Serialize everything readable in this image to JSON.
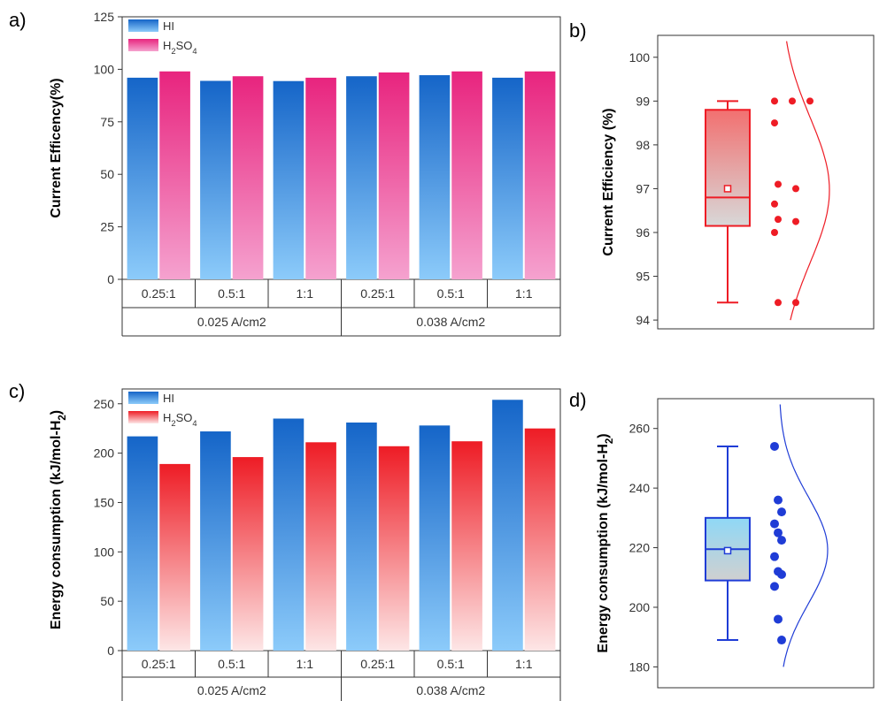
{
  "panel_letters": [
    "a)",
    "b)",
    "c)",
    "d)"
  ],
  "colors": {
    "hi_blue": "#1565c8",
    "h2so4_pink": "#e8247e",
    "h2so4_red": "#ee1c25",
    "box_red": "#ee1c25",
    "box_blue": "#1f3cd6"
  },
  "chart_data": [
    {
      "id": "a",
      "type": "bar",
      "ylabel": "Current Efficency(%)",
      "ylim": [
        0,
        125
      ],
      "yticks": [
        0,
        25,
        50,
        75,
        100,
        125
      ],
      "categories": [
        "0.25:1",
        "0.5:1",
        "1:1",
        "0.25:1",
        "0.5:1",
        "1:1"
      ],
      "groups": [
        {
          "label": "0.025 A/cm2",
          "span": 3
        },
        {
          "label": "0.038 A/cm2",
          "span": 3
        }
      ],
      "legend_position": "top-left",
      "series": [
        {
          "name": "HI",
          "name_sub": "",
          "name_tail": "",
          "values": [
            96,
            94.5,
            94.4,
            96.7,
            97.2,
            96
          ]
        },
        {
          "name": "H",
          "name_sub": "2",
          "name_tail": "SO",
          "name_sub2": "4",
          "values": [
            99,
            96.7,
            96,
            98.5,
            99,
            99
          ]
        }
      ]
    },
    {
      "id": "b",
      "type": "box",
      "ylabel": "Current Efficiency (%)",
      "ylim": [
        93.8,
        100.5
      ],
      "yticks": [
        94,
        95,
        96,
        97,
        98,
        99,
        100
      ],
      "box": {
        "q1": 96.15,
        "median": 96.8,
        "q3": 98.8,
        "whisker_low": 94.4,
        "whisker_high": 99.0,
        "mean": 97.0
      },
      "points": [
        99,
        99,
        99,
        98.5,
        97.1,
        97.0,
        96.65,
        96.3,
        96.25,
        96.0,
        94.4,
        94.4
      ]
    },
    {
      "id": "c",
      "type": "bar",
      "ylabel": "Energy consumption (kJ/mol-H",
      "ylabel_sub": "2",
      "ylabel_tail": ")",
      "ylim": [
        0,
        265
      ],
      "yticks": [
        0,
        50,
        100,
        150,
        200,
        250
      ],
      "categories": [
        "0.25:1",
        "0.5:1",
        "1:1",
        "0.25:1",
        "0.5:1",
        "1:1"
      ],
      "groups": [
        {
          "label": "0.025 A/cm2",
          "span": 3
        },
        {
          "label": "0.038 A/cm2",
          "span": 3
        }
      ],
      "legend_position": "top-left",
      "series": [
        {
          "name": "HI",
          "name_sub": "",
          "name_tail": "",
          "values": [
            217,
            222,
            235,
            231,
            228,
            254
          ]
        },
        {
          "name": "H",
          "name_sub": "2",
          "name_tail": "SO",
          "name_sub2": "4",
          "values": [
            189,
            196,
            211,
            207,
            212,
            225
          ]
        }
      ]
    },
    {
      "id": "d",
      "type": "box",
      "ylabel": "Energy consumption (kJ/mol-H",
      "ylabel_sub": "2",
      "ylabel_tail": ")",
      "ylim": [
        173,
        270
      ],
      "yticks": [
        180,
        200,
        220,
        240,
        260
      ],
      "box": {
        "q1": 209,
        "median": 219.5,
        "q3": 230,
        "whisker_low": 189,
        "whisker_high": 254,
        "mean": 219
      },
      "points": [
        254,
        236,
        232,
        228,
        225,
        222.5,
        217,
        212,
        211,
        207,
        196,
        189
      ]
    }
  ]
}
